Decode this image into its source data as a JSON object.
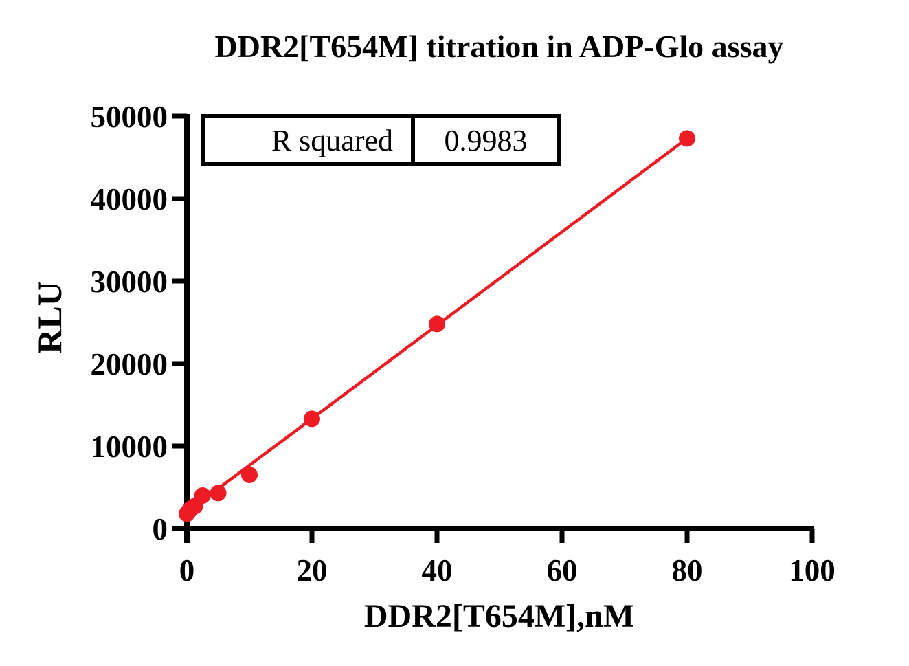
{
  "chart_data": {
    "type": "scatter",
    "title": "DDR2[T654M] titration in ADP-Glo assay",
    "xlabel": "DDR2[T654M],nM",
    "ylabel": "RLU",
    "xlim": [
      0,
      100
    ],
    "ylim": [
      0,
      50000
    ],
    "x_ticks": [
      0,
      20,
      40,
      60,
      80,
      100
    ],
    "y_ticks": [
      0,
      10000,
      20000,
      30000,
      40000,
      50000
    ],
    "grid": false,
    "legend": "none",
    "axis_color": "#000000",
    "series": [
      {
        "name": "DDR2[T654M] titration",
        "marker": "circle",
        "marker_color": "#ED1C24",
        "points": [
          {
            "x": 0,
            "y": 1800
          },
          {
            "x": 0.3125,
            "y": 2100
          },
          {
            "x": 0.625,
            "y": 2400
          },
          {
            "x": 1.25,
            "y": 2700
          },
          {
            "x": 2.5,
            "y": 4000
          },
          {
            "x": 5,
            "y": 4300
          },
          {
            "x": 10,
            "y": 6500
          },
          {
            "x": 20,
            "y": 13300
          },
          {
            "x": 40,
            "y": 24800
          },
          {
            "x": 80,
            "y": 47300
          }
        ]
      }
    ],
    "fit_line": {
      "color": "#ED1C24",
      "x_start": 0,
      "y_start": 2000,
      "x_end": 80,
      "y_end": 47300
    },
    "stats": {
      "label": "R squared",
      "value": "0.9983"
    }
  }
}
